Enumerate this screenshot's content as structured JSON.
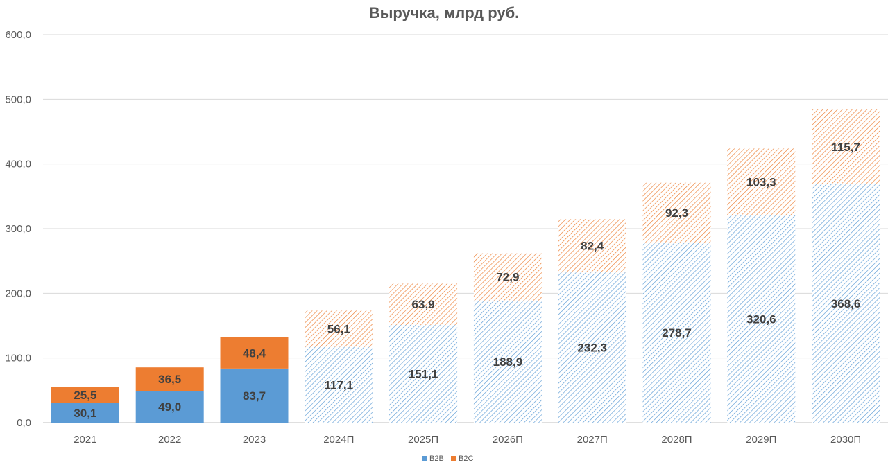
{
  "chart_data": {
    "type": "bar",
    "stacked": true,
    "title": "Выручка, млрд руб.",
    "xlabel": "",
    "ylabel": "",
    "ylim": [
      0,
      600
    ],
    "yticks": [
      "0,0",
      "100,0",
      "200,0",
      "300,0",
      "400,0",
      "500,0",
      "600,0"
    ],
    "grid": true,
    "legend_position": "bottom",
    "categories": [
      "2021",
      "2022",
      "2023",
      "2024П",
      "2025П",
      "2026П",
      "2027П",
      "2028П",
      "2029П",
      "2030П"
    ],
    "forecast": [
      false,
      false,
      false,
      true,
      true,
      true,
      true,
      true,
      true,
      true
    ],
    "series": [
      {
        "name": "B2B",
        "color": "#5b9bd5",
        "values": [
          30.1,
          49.0,
          83.7,
          117.1,
          151.1,
          188.9,
          232.3,
          278.7,
          320.6,
          368.6
        ],
        "labels": [
          "30,1",
          "49,0",
          "83,7",
          "117,1",
          "151,1",
          "188,9",
          "232,3",
          "278,7",
          "320,6",
          "368,6"
        ]
      },
      {
        "name": "B2C",
        "color": "#ed7d31",
        "values": [
          25.5,
          36.5,
          48.4,
          56.1,
          63.9,
          72.9,
          82.4,
          92.3,
          103.3,
          115.7
        ],
        "labels": [
          "25,5",
          "36,5",
          "48,4",
          "56,1",
          "63,9",
          "72,9",
          "82,4",
          "92,3",
          "103,3",
          "115,7"
        ]
      }
    ]
  }
}
